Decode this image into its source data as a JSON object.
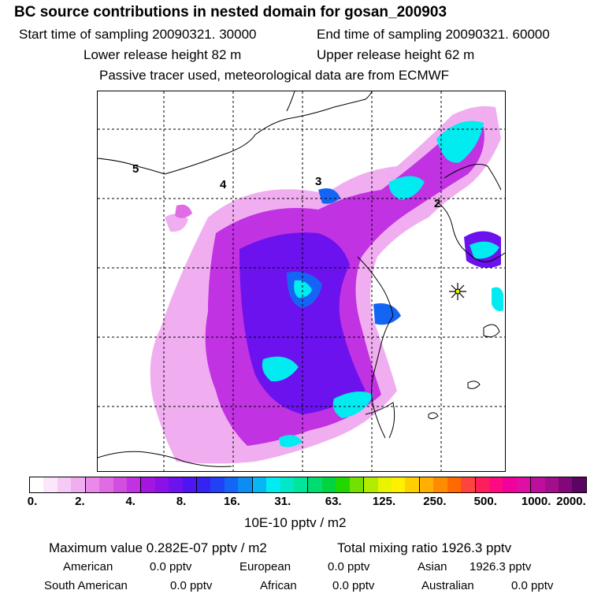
{
  "header": {
    "title": "BC  source contributions in nested domain for gosan_200903",
    "start_time": "Start time of sampling 20090321. 30000",
    "end_time": "End time of sampling 20090321. 60000",
    "lower_height": "Lower release height   82 m",
    "upper_height": "Upper release height   62 m",
    "tracer_note": "Passive tracer used, meteorological data are from ECMWF"
  },
  "map": {
    "contour_labels": [
      "5",
      "4",
      "3",
      "2"
    ],
    "receptor_marker": "star-marker",
    "background_color": "#ffffff"
  },
  "colorbar": {
    "colors": [
      "#ffffff",
      "#fce6fc",
      "#f6caf6",
      "#f0aef0",
      "#e98ae9",
      "#e06ce4",
      "#d24edf",
      "#c032e2",
      "#a515e0",
      "#8a12e8",
      "#6c12ee",
      "#4f14f2",
      "#3523f4",
      "#2142f4",
      "#1465f4",
      "#0c8df4",
      "#08b6f4",
      "#00ecf0",
      "#00e8c8",
      "#00e49c",
      "#00dc70",
      "#00d440",
      "#20d800",
      "#74e000",
      "#b4ec00",
      "#e8f400",
      "#fff000",
      "#ffd000",
      "#ffb000",
      "#ff8c00",
      "#ff6a00",
      "#ff4440",
      "#ff1e5c",
      "#ff0a82",
      "#f2009c",
      "#de0ea6",
      "#c00e9c",
      "#a20e8c",
      "#82087a",
      "#5c0462"
    ],
    "ticks": [
      "0.",
      "2.",
      "4.",
      "8.",
      "16.",
      "31.",
      "63.",
      "125.",
      "250.",
      "500.",
      "1000.",
      "2000."
    ],
    "units": "10E-10 pptv / m2"
  },
  "summary": {
    "max_value": "Maximum value  0.282E-07 pptv / m2",
    "total_mixing": "Total mixing ratio     1926.3 pptv"
  },
  "sources": [
    {
      "name": "American",
      "value": "0.0 pptv"
    },
    {
      "name": "European",
      "value": "0.0 pptv"
    },
    {
      "name": "Asian",
      "value": "1926.3 pptv"
    },
    {
      "name": "South American",
      "value": "0.0 pptv"
    },
    {
      "name": "African",
      "value": "0.0 pptv"
    },
    {
      "name": "Australian",
      "value": "0.0 pptv"
    }
  ]
}
